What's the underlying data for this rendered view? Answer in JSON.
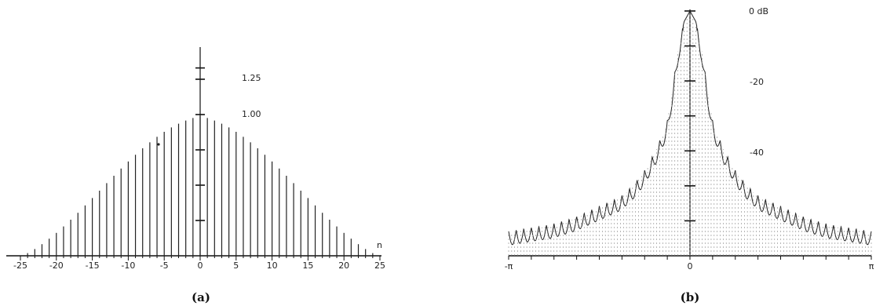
{
  "chart_data": [
    {
      "type": "stem",
      "caption": "(a)",
      "xlabel": "n",
      "xlim": [
        -25,
        25
      ],
      "x_ticks": [
        "-25",
        "-20",
        "-15",
        "-10",
        "-5",
        "0",
        "5",
        "10",
        "15",
        "20",
        "25"
      ],
      "y_tick_labels": [
        "1.25",
        "1.00"
      ],
      "ylim": [
        0,
        1.5
      ],
      "x": [
        -24,
        -23,
        -22,
        -21,
        -20,
        -19,
        -18,
        -17,
        -16,
        -15,
        -14,
        -13,
        -12,
        -11,
        -10,
        -9,
        -8,
        -7,
        -6,
        -5,
        -4,
        -3,
        -2,
        -1,
        0,
        1,
        2,
        3,
        4,
        5,
        6,
        7,
        8,
        9,
        10,
        11,
        12,
        13,
        14,
        15,
        16,
        17,
        18,
        19,
        20,
        21,
        22,
        23,
        24
      ],
      "values": [
        0.017,
        0.043,
        0.074,
        0.109,
        0.146,
        0.187,
        0.23,
        0.274,
        0.321,
        0.368,
        0.415,
        0.463,
        0.51,
        0.556,
        0.601,
        0.644,
        0.685,
        0.723,
        0.758,
        0.79,
        0.818,
        0.842,
        0.862,
        0.878,
        0.89,
        0.878,
        0.862,
        0.842,
        0.818,
        0.79,
        0.758,
        0.723,
        0.685,
        0.644,
        0.601,
        0.556,
        0.51,
        0.463,
        0.415,
        0.368,
        0.321,
        0.274,
        0.23,
        0.187,
        0.146,
        0.109,
        0.074,
        0.043,
        0.017
      ],
      "grid": false
    },
    {
      "type": "line",
      "caption": "(b)",
      "x_ticks": [
        "-π",
        "0",
        "π"
      ],
      "y_tick_labels": [
        "0 dB",
        "-20",
        "-40"
      ],
      "xlim": [
        "-π",
        "π"
      ],
      "ylim": [
        -70,
        0
      ],
      "series": [
        {
          "x": [
            -3.14,
            -2.8,
            -2.4,
            -2.0,
            -1.6,
            -1.2,
            -1.0,
            -0.8,
            -0.6,
            -0.4,
            -0.3,
            -0.2,
            -0.1,
            0,
            0.1,
            0.2,
            0.3,
            0.4,
            0.6,
            0.8,
            1.0,
            1.2,
            1.6,
            2.0,
            2.4,
            2.8,
            3.14
          ],
          "values": [
            -63,
            -62,
            -61,
            -59,
            -56,
            -53,
            -50,
            -46,
            -40,
            -32,
            -22,
            -10,
            -3,
            0,
            -3,
            -10,
            -22,
            -32,
            -40,
            -46,
            -50,
            -53,
            -56,
            -59,
            -61,
            -62,
            -63
          ]
        }
      ],
      "grid": false
    }
  ]
}
